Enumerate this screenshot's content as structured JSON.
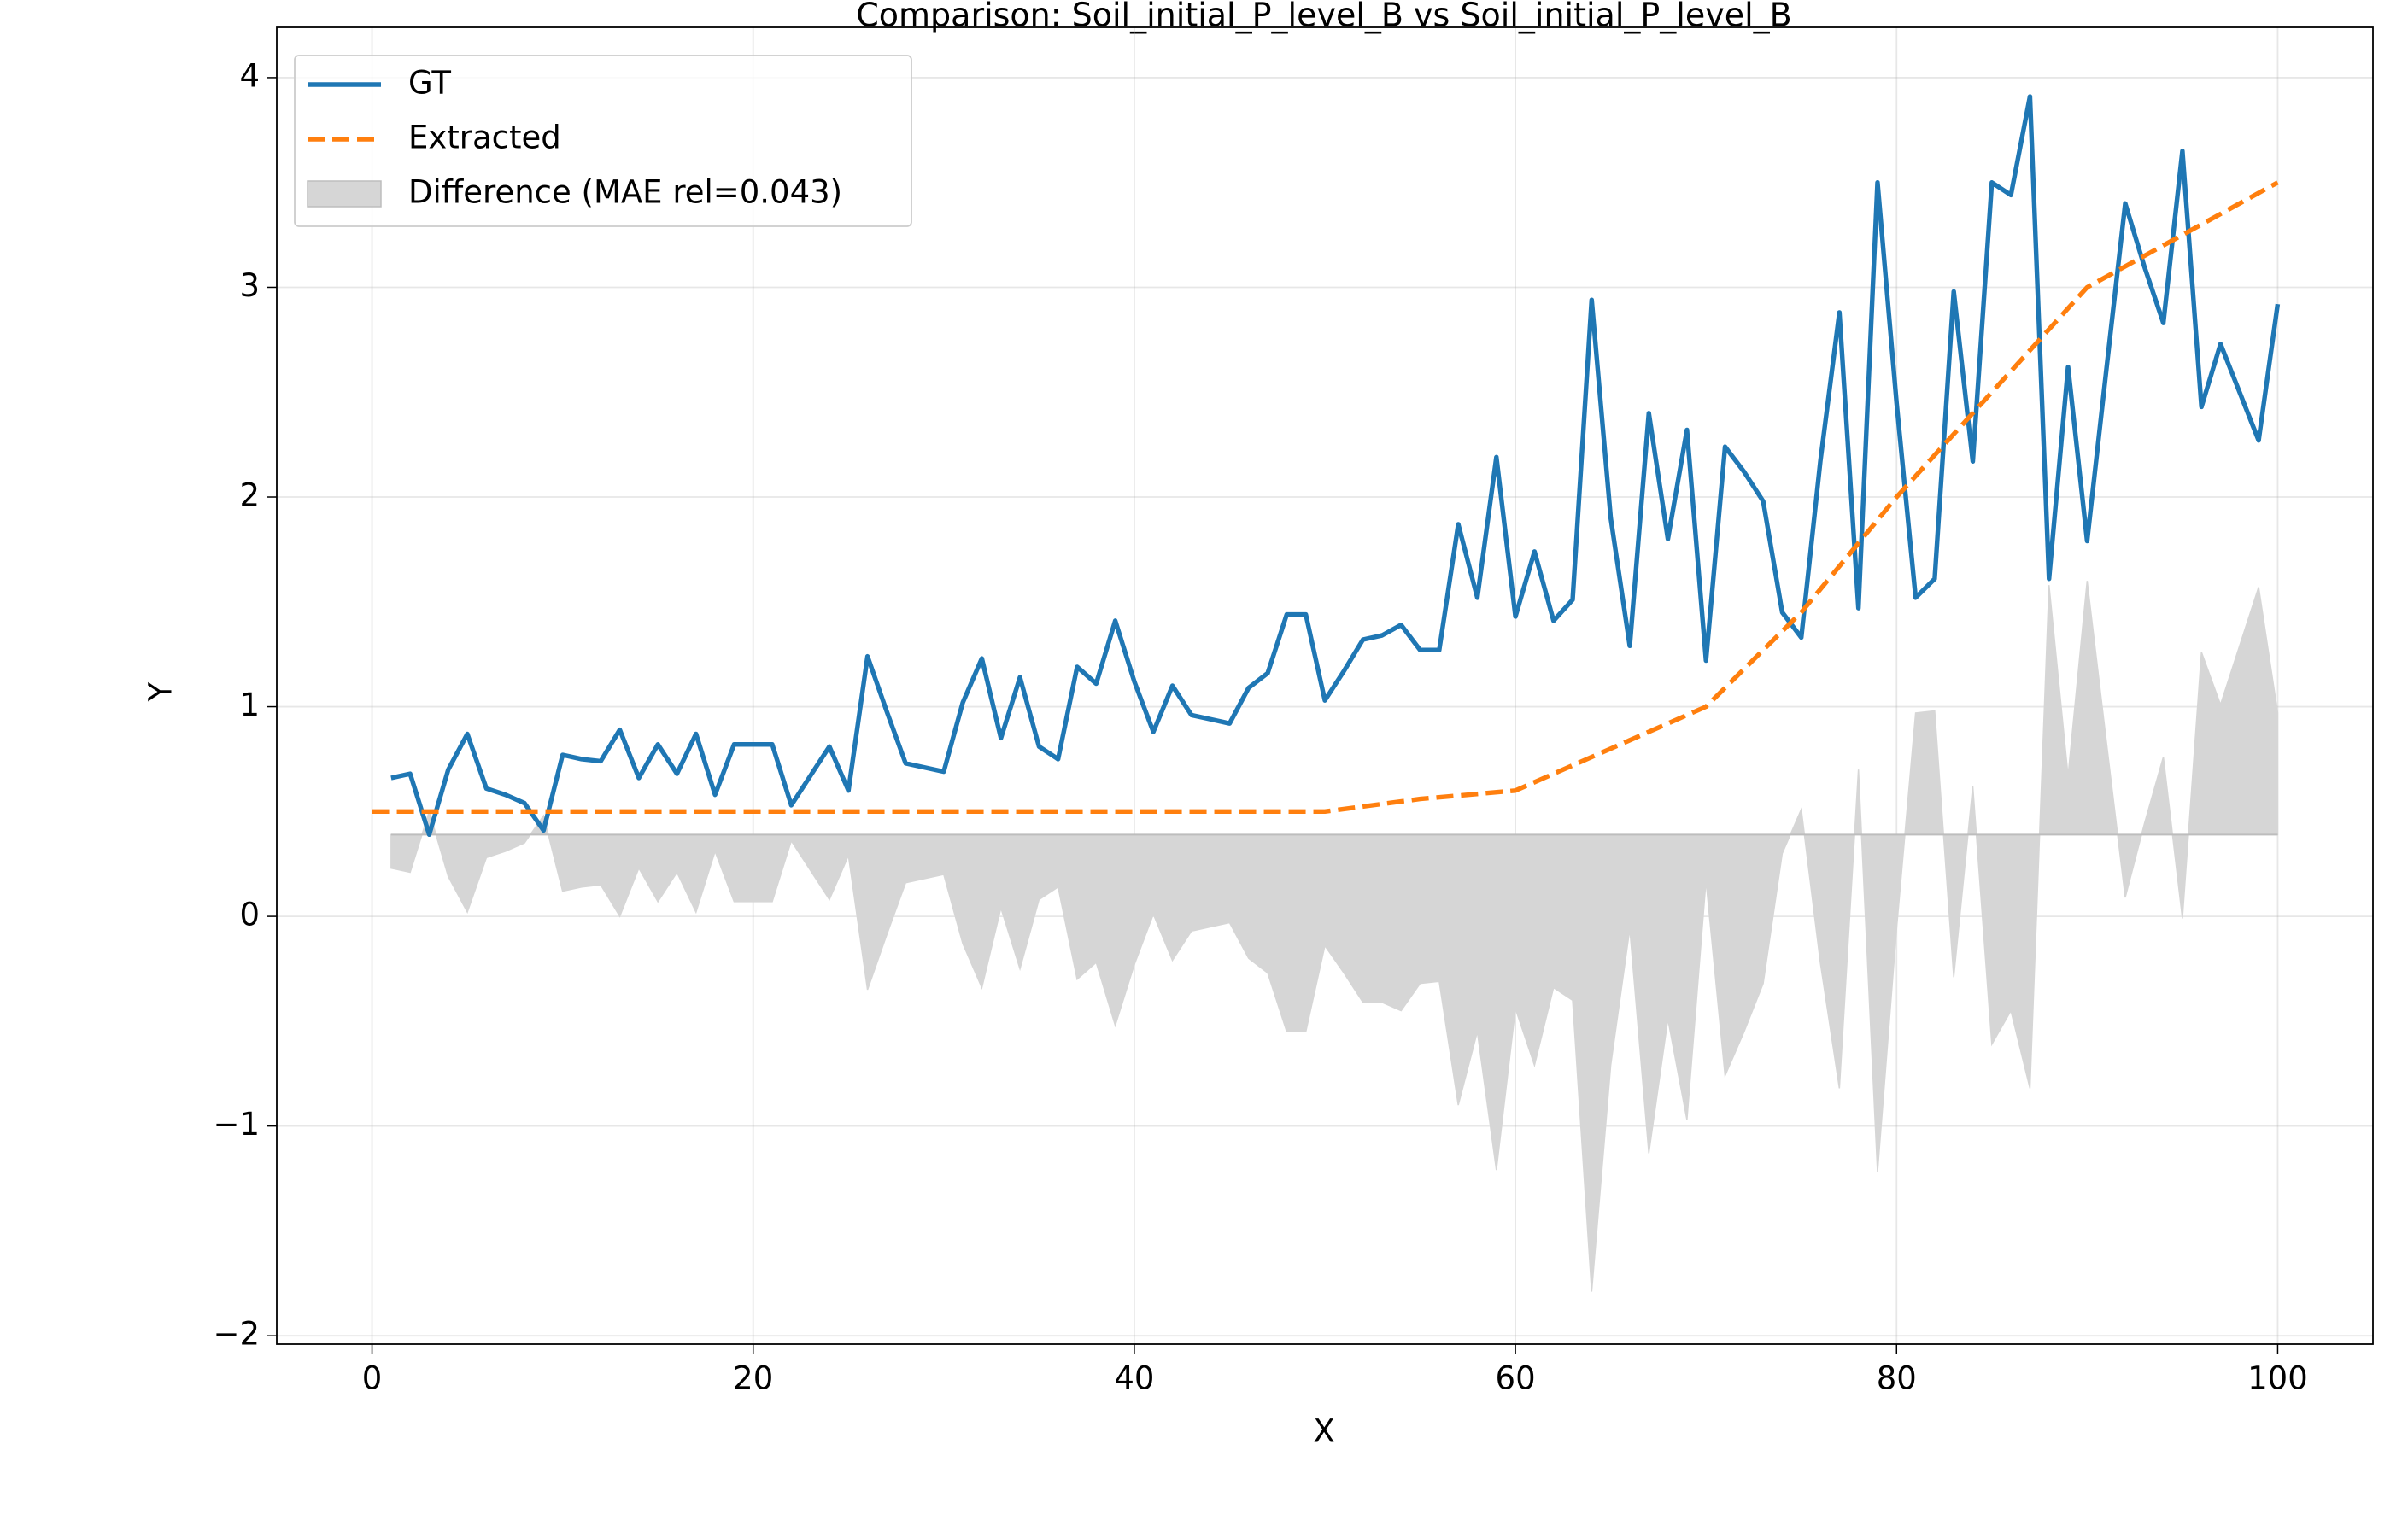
{
  "chart_data": {
    "type": "line",
    "title": "Comparison: Soil_initial_P_level_B vs Soil_initial_P_level_B",
    "x_label": "X",
    "y_label": "Y",
    "xlim": [
      -5,
      105
    ],
    "ylim": [
      -2.04,
      4.24
    ],
    "xticks": [
      0,
      20,
      40,
      60,
      80,
      100
    ],
    "yticks": [
      {
        "value": -2,
        "label": "−2"
      },
      {
        "value": -1,
        "label": "−1"
      },
      0,
      1,
      2,
      3,
      4
    ],
    "grid": true,
    "legend": "upper left",
    "series": [
      {
        "name": "GT",
        "color": "#1f77b4",
        "style": "solid",
        "x": [
          1,
          2,
          3,
          4,
          5,
          6,
          7,
          8,
          9,
          10,
          11,
          12,
          13,
          14,
          15,
          16,
          17,
          18,
          19,
          20,
          21,
          22,
          23,
          24,
          25,
          26,
          27,
          28,
          29,
          30,
          31,
          32,
          33,
          34,
          35,
          36,
          37,
          38,
          39,
          40,
          41,
          42,
          43,
          44,
          45,
          46,
          47,
          48,
          49,
          50,
          51,
          52,
          53,
          54,
          55,
          56,
          57,
          58,
          59,
          60,
          61,
          62,
          63,
          64,
          65,
          66,
          67,
          68,
          69,
          70,
          71,
          72,
          73,
          74,
          75,
          76,
          77,
          78,
          79,
          80,
          81,
          82,
          83,
          84,
          85,
          86,
          87,
          88,
          89,
          90,
          91,
          92,
          93,
          94,
          95,
          96,
          97,
          98,
          99,
          100
        ],
        "values": [
          0.66,
          0.68,
          0.39,
          0.7,
          0.87,
          0.61,
          0.58,
          0.54,
          0.41,
          0.77,
          0.75,
          0.74,
          0.89,
          0.66,
          0.82,
          0.68,
          0.87,
          0.58,
          0.82,
          0.82,
          0.82,
          0.53,
          0.67,
          0.81,
          0.6,
          1.24,
          0.98,
          0.73,
          0.71,
          0.69,
          1.02,
          1.23,
          0.85,
          1.14,
          0.81,
          0.75,
          1.19,
          1.11,
          1.41,
          1.12,
          0.88,
          1.1,
          0.96,
          0.94,
          0.92,
          1.09,
          1.16,
          1.44,
          1.44,
          1.03,
          1.17,
          1.32,
          1.34,
          1.39,
          1.27,
          1.27,
          1.87,
          1.52,
          2.19,
          1.43,
          1.74,
          1.41,
          1.51,
          2.94,
          1.9,
          1.29,
          2.4,
          1.8,
          2.32,
          1.22,
          2.24,
          2.12,
          1.98,
          1.45,
          1.33,
          2.17,
          2.88,
          1.47,
          3.5,
          2.45,
          1.52,
          1.61,
          2.98,
          2.17,
          3.5,
          3.44,
          3.91,
          1.61,
          2.62,
          1.79,
          2.6,
          3.4,
          3.1,
          2.83,
          3.65,
          2.43,
          2.73,
          2.5,
          2.27,
          2.92
        ]
      },
      {
        "name": "Extracted",
        "color": "#ff7f0e",
        "style": "dashed",
        "x": [
          0,
          10,
          20,
          30,
          40,
          50,
          55,
          60,
          65,
          70,
          75,
          80,
          85,
          90,
          95,
          100
        ],
        "values": [
          0.5,
          0.5,
          0.5,
          0.5,
          0.5,
          0.5,
          0.56,
          0.6,
          0.8,
          1.0,
          1.45,
          2.0,
          2.5,
          3.0,
          3.25,
          3.5
        ]
      },
      {
        "name": "Difference (MAE rel=0.043)",
        "color": "#d6d6d6",
        "style": "fill",
        "baseline": 0.39,
        "x": [
          1,
          2,
          3,
          4,
          5,
          6,
          7,
          8,
          9,
          10,
          11,
          12,
          13,
          14,
          15,
          16,
          17,
          18,
          19,
          20,
          21,
          22,
          23,
          24,
          25,
          26,
          27,
          28,
          29,
          30,
          31,
          32,
          33,
          34,
          35,
          36,
          37,
          38,
          39,
          40,
          41,
          42,
          43,
          44,
          45,
          46,
          47,
          48,
          49,
          50,
          51,
          52,
          53,
          54,
          55,
          56,
          57,
          58,
          59,
          60,
          61,
          62,
          63,
          64,
          65,
          66,
          67,
          68,
          69,
          70,
          71,
          72,
          73,
          74,
          75,
          76,
          77,
          78,
          79,
          80,
          81,
          82,
          83,
          84,
          85,
          86,
          87,
          88,
          89,
          90,
          91,
          92,
          93,
          94,
          95,
          96,
          97,
          98,
          99,
          100
        ],
        "values": [
          0.23,
          0.21,
          0.5,
          0.19,
          0.02,
          0.28,
          0.31,
          0.35,
          0.48,
          0.12,
          0.14,
          0.15,
          0.0,
          0.23,
          0.07,
          0.21,
          0.02,
          0.31,
          0.07,
          0.07,
          0.07,
          0.36,
          0.22,
          0.08,
          0.29,
          -0.35,
          -0.09,
          0.16,
          0.18,
          0.2,
          -0.13,
          -0.34,
          0.04,
          -0.25,
          0.08,
          0.14,
          -0.3,
          -0.22,
          -0.52,
          -0.23,
          0.01,
          -0.21,
          -0.07,
          -0.05,
          -0.03,
          -0.2,
          -0.27,
          -0.55,
          -0.55,
          -0.14,
          -0.27,
          -0.41,
          -0.41,
          -0.45,
          -0.32,
          -0.31,
          -0.9,
          -0.55,
          -1.21,
          -0.44,
          -0.71,
          -0.34,
          -0.4,
          -1.79,
          -0.71,
          -0.06,
          -1.13,
          -0.49,
          -0.97,
          0.17,
          -0.76,
          -0.55,
          -0.32,
          0.3,
          0.51,
          -0.22,
          -0.82,
          0.7,
          -1.22,
          -0.06,
          0.97,
          0.98,
          -0.29,
          0.62,
          -0.61,
          -0.45,
          -0.82,
          1.58,
          0.67,
          1.6,
          0.84,
          0.09,
          0.44,
          0.76,
          -0.01,
          1.26,
          1.01,
          1.29,
          1.57,
          0.97
        ]
      }
    ]
  }
}
